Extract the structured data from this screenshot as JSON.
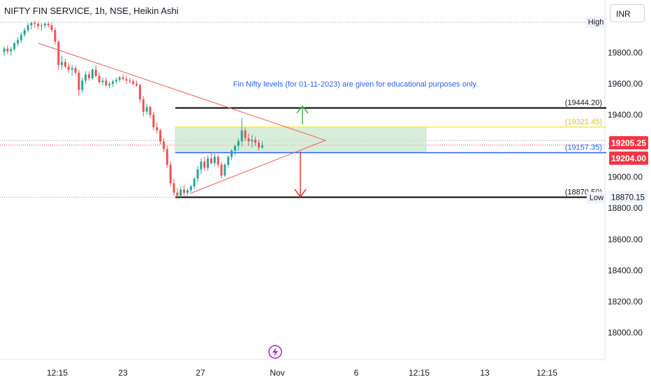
{
  "symbol_title": "NIFTY FIN SERVICE, 1h, NSE, Heikin Ashi",
  "currency": "INR",
  "annotation": "Fin Nifty levels (for 01-11-2023) are given for educational purposes only.",
  "colors": {
    "up": "#26a69a",
    "down": "#ef5350",
    "trendline": "#f05a5a",
    "level_black": "#000000",
    "level_yellow": "#ffe74c",
    "level_blue": "#2962ff",
    "zone_fill": "#c8e6c9",
    "arrow_up": "#4caf50",
    "arrow_down": "#e53935",
    "annotation": "#2962ff",
    "grid_dotted": "#9598a1",
    "price_red": "#f23645"
  },
  "chart_data": {
    "type": "candlestick",
    "y_ticks": [
      "19800.00",
      "19600.00",
      "19400.00",
      "19200.00",
      "19000.00",
      "18800.00",
      "18600.00",
      "18400.00",
      "18200.00",
      "18000.00"
    ],
    "x_ticks": [
      "12:15",
      "23",
      "27",
      "Nov",
      "6",
      "12:15",
      "13",
      "12:15"
    ],
    "hi_lo": [
      {
        "label": "High",
        "value": null
      },
      {
        "label": "Low",
        "value": "18870.15"
      }
    ],
    "last_prices": [
      "19205.25",
      "19204.00"
    ],
    "levels": [
      {
        "label": "(19444.20)",
        "value": 19444.2,
        "color": "#000000"
      },
      {
        "label": "(19321.45)",
        "value": 19321.45,
        "color": "#ffe74c"
      },
      {
        "label": "(19157.35)",
        "value": 19157.35,
        "color": "#2962ff"
      },
      {
        "label": "(18870.50)",
        "value": 18870.5,
        "color": "#000000"
      }
    ],
    "candles": [
      [
        19804,
        19840,
        19778,
        19826
      ],
      [
        19826,
        19846,
        19790,
        19808
      ],
      [
        19808,
        19836,
        19780,
        19822
      ],
      [
        19822,
        19870,
        19810,
        19860
      ],
      [
        19860,
        19900,
        19840,
        19880
      ],
      [
        19880,
        19930,
        19860,
        19915
      ],
      [
        19915,
        19960,
        19900,
        19945
      ],
      [
        19945,
        19990,
        19930,
        19975
      ],
      [
        19975,
        20000,
        19950,
        19990
      ],
      [
        19990,
        20005,
        19960,
        19985
      ],
      [
        19985,
        20000,
        19950,
        19970
      ],
      [
        19970,
        19990,
        19940,
        19975
      ],
      [
        19975,
        19995,
        19955,
        19985
      ],
      [
        19985,
        20000,
        19960,
        19975
      ],
      [
        19975,
        19990,
        19930,
        19945
      ],
      [
        19945,
        19960,
        19850,
        19870
      ],
      [
        19870,
        19880,
        19690,
        19720
      ],
      [
        19720,
        19780,
        19690,
        19740
      ],
      [
        19740,
        19760,
        19700,
        19710
      ],
      [
        19710,
        19730,
        19670,
        19690
      ],
      [
        19690,
        19720,
        19650,
        19700
      ],
      [
        19700,
        19715,
        19655,
        19670
      ],
      [
        19670,
        19690,
        19520,
        19560
      ],
      [
        19560,
        19640,
        19540,
        19620
      ],
      [
        19620,
        19680,
        19600,
        19660
      ],
      [
        19660,
        19680,
        19620,
        19635
      ],
      [
        19635,
        19700,
        19625,
        19690
      ],
      [
        19690,
        19720,
        19640,
        19650
      ],
      [
        19650,
        19670,
        19600,
        19610
      ],
      [
        19610,
        19640,
        19590,
        19620
      ],
      [
        19620,
        19640,
        19580,
        19590
      ],
      [
        19590,
        19615,
        19570,
        19600
      ],
      [
        19600,
        19625,
        19580,
        19615
      ],
      [
        19615,
        19640,
        19600,
        19625
      ],
      [
        19625,
        19650,
        19610,
        19640
      ],
      [
        19640,
        19660,
        19620,
        19630
      ],
      [
        19630,
        19650,
        19600,
        19620
      ],
      [
        19620,
        19640,
        19600,
        19615
      ],
      [
        19615,
        19630,
        19590,
        19600
      ],
      [
        19600,
        19620,
        19580,
        19590
      ],
      [
        19590,
        19600,
        19480,
        19500
      ],
      [
        19500,
        19520,
        19390,
        19420
      ],
      [
        19420,
        19470,
        19400,
        19450
      ],
      [
        19450,
        19460,
        19380,
        19400
      ],
      [
        19400,
        19420,
        19300,
        19320
      ],
      [
        19320,
        19350,
        19280,
        19300
      ],
      [
        19300,
        19310,
        19210,
        19230
      ],
      [
        19230,
        19250,
        19160,
        19180
      ],
      [
        19180,
        19200,
        19060,
        19080
      ],
      [
        19080,
        19100,
        18940,
        18960
      ],
      [
        18960,
        18990,
        18880,
        18900
      ],
      [
        18900,
        18930,
        18860,
        18880
      ],
      [
        18880,
        18940,
        18870,
        18920
      ],
      [
        18920,
        18950,
        18880,
        18900
      ],
      [
        18900,
        18930,
        18880,
        18915
      ],
      [
        18915,
        18950,
        18890,
        18940
      ],
      [
        18940,
        19000,
        18920,
        18990
      ],
      [
        18990,
        19070,
        18970,
        19050
      ],
      [
        19050,
        19120,
        19020,
        19100
      ],
      [
        19100,
        19130,
        19040,
        19060
      ],
      [
        19060,
        19140,
        19040,
        19120
      ],
      [
        19120,
        19160,
        19080,
        19090
      ],
      [
        19090,
        19150,
        19070,
        19130
      ],
      [
        19130,
        19145,
        19060,
        19080
      ],
      [
        19080,
        19100,
        18990,
        19010
      ],
      [
        19010,
        19090,
        19000,
        19080
      ],
      [
        19080,
        19140,
        19060,
        19130
      ],
      [
        19130,
        19180,
        19110,
        19170
      ],
      [
        19170,
        19210,
        19140,
        19200
      ],
      [
        19200,
        19250,
        19170,
        19230
      ],
      [
        19230,
        19380,
        19200,
        19300
      ],
      [
        19300,
        19320,
        19230,
        19250
      ],
      [
        19250,
        19280,
        19200,
        19230
      ],
      [
        19230,
        19270,
        19190,
        19240
      ],
      [
        19240,
        19260,
        19200,
        19220
      ],
      [
        19220,
        19240,
        19170,
        19190
      ],
      [
        19190,
        19230,
        19180,
        19205
      ]
    ]
  }
}
